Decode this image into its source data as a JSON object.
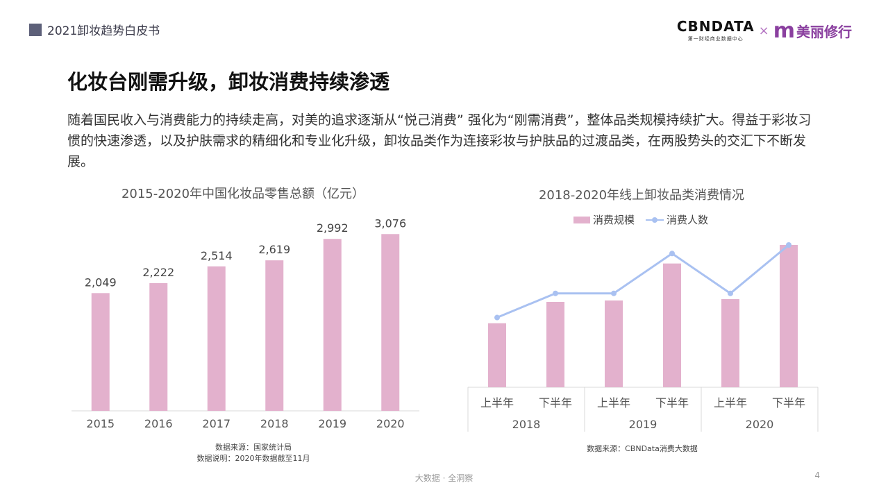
{
  "header": {
    "report_name": "2021卸妆趋势白皮书",
    "logo_cbn_main": "CBNDATA",
    "logo_cbn_sub": "第一财经商业数据中心",
    "logo_cross": "×",
    "logo_partner_mark": "m",
    "logo_partner_name": "美丽修行"
  },
  "main": {
    "title": "化妆台刚需升级，卸妆消费持续渗透",
    "intro": "随着国民收入与消费能力的持续走高，对美的追求逐渐从“悦己消费” 强化为“刚需消费”，整体品类规模持续扩大。得益于彩妆习惯的快速渗透，以及护肤需求的精细化和专业化升级，卸妆品类作为连接彩妆与护肤品的过渡品类，在两股势头的交汇下不断发展。"
  },
  "chart_data": [
    {
      "type": "bar",
      "title": "2015-2020年中国化妆品零售总额（亿元）",
      "categories": [
        "2015",
        "2016",
        "2017",
        "2018",
        "2019",
        "2020"
      ],
      "values": [
        2049,
        2222,
        2514,
        2619,
        2992,
        3076
      ],
      "value_labels": [
        "2,049",
        "2,222",
        "2,514",
        "2,619",
        "2,992",
        "3,076"
      ],
      "ylim": [
        0,
        3200
      ],
      "bar_color": "#e3b1cd",
      "grid": false,
      "source": [
        "数据来源：国家统计局",
        "数据说明：2020年数据截至11月"
      ]
    },
    {
      "type": "bar",
      "title": "2018-2020年线上卸妆品类消费情况",
      "categories": [
        "上半年",
        "下半年",
        "上半年",
        "下半年",
        "上半年",
        "下半年"
      ],
      "groups": [
        "2018",
        "2019",
        "2020"
      ],
      "series": [
        {
          "name": "消费规模",
          "type": "bar",
          "color": "#e3b1cd",
          "values": [
            0.45,
            0.6,
            0.61,
            0.87,
            0.62,
            1.0
          ]
        },
        {
          "name": "消费人数",
          "type": "line",
          "color": "#a9c1f1",
          "values": [
            0.49,
            0.66,
            0.66,
            0.94,
            0.66,
            1.0
          ]
        }
      ],
      "legend": "top-center",
      "grid": false,
      "source": [
        "数据来源：CBNData消费大数据"
      ]
    }
  ],
  "footer": {
    "tagline": "大数据 · 全洞察",
    "page_number": "4"
  }
}
